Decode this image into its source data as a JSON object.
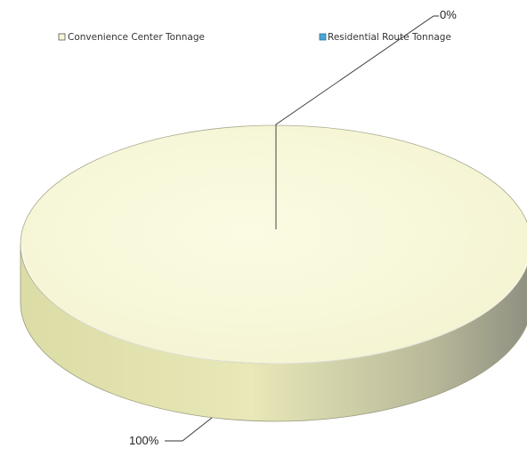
{
  "chart_data": {
    "type": "pie",
    "three_d": true,
    "categories": [
      "Convenience Center Tonnage",
      "Residential Route Tonnage"
    ],
    "values": [
      100,
      0
    ],
    "data_labels": [
      "100%",
      "0%"
    ],
    "colors": {
      "Convenience Center Tonnage": "#f8f8d8",
      "Residential Route Tonnage": "#4aa6d6"
    },
    "legend_position": "top",
    "title": ""
  }
}
